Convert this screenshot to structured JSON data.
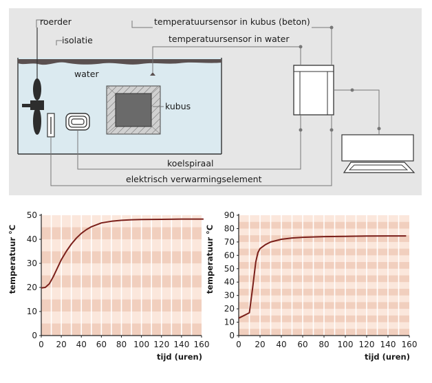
{
  "diagram": {
    "labels": {
      "roerder": "roerder",
      "isolatie": "isolatie",
      "water": "water",
      "kubus": "kubus",
      "sensor_kubus": "temperatuursensor in kubus (beton)",
      "sensor_water": "temperatuursensor in water",
      "koelspiraal": "koelspiraal",
      "verwarmingselement": "elektrisch verwarmingselement"
    },
    "colors": {
      "panel": "#e6e6e6",
      "water": "#dbeaf0",
      "insulation": "#5a5050",
      "cube": "#6a6a6a",
      "wire": "#777777"
    }
  },
  "chart_data": [
    {
      "type": "line",
      "title": "",
      "xlabel": "tijd (uren)",
      "ylabel": "temperatuur °C",
      "xlim": [
        0,
        160
      ],
      "ylim": [
        0,
        50
      ],
      "xticks": [
        0,
        20,
        40,
        60,
        80,
        100,
        120,
        140,
        160
      ],
      "yticks": [
        0,
        10,
        20,
        30,
        40,
        50
      ],
      "grid": true,
      "color": "#7a1f1a",
      "series": [
        {
          "x": [
            0,
            4,
            8,
            12,
            16,
            20,
            25,
            30,
            35,
            40,
            45,
            50,
            60,
            70,
            80,
            90,
            100,
            120,
            140,
            162
          ],
          "y": [
            19.8,
            20,
            21.5,
            24.5,
            28,
            31.5,
            35,
            38,
            40.5,
            42.5,
            44,
            45.2,
            46.8,
            47.5,
            47.9,
            48.1,
            48.2,
            48.3,
            48.4,
            48.4
          ]
        }
      ]
    },
    {
      "type": "line",
      "title": "",
      "xlabel": "tijd (uren)",
      "ylabel": "temperatuur °C",
      "xlim": [
        0,
        160
      ],
      "ylim": [
        0,
        90
      ],
      "xticks": [
        0,
        20,
        40,
        60,
        80,
        100,
        120,
        140,
        160
      ],
      "yticks": [
        0,
        10,
        20,
        30,
        40,
        50,
        60,
        70,
        80,
        90
      ],
      "grid": true,
      "color": "#7a1f1a",
      "series": [
        {
          "x": [
            0,
            5,
            10,
            13,
            16,
            18,
            20,
            25,
            30,
            40,
            50,
            60,
            80,
            100,
            120,
            140,
            157
          ],
          "y": [
            13,
            15,
            17,
            35,
            55,
            62,
            65,
            68,
            70,
            72,
            73,
            73.5,
            74,
            74.2,
            74.4,
            74.5,
            74.5
          ]
        }
      ]
    }
  ]
}
